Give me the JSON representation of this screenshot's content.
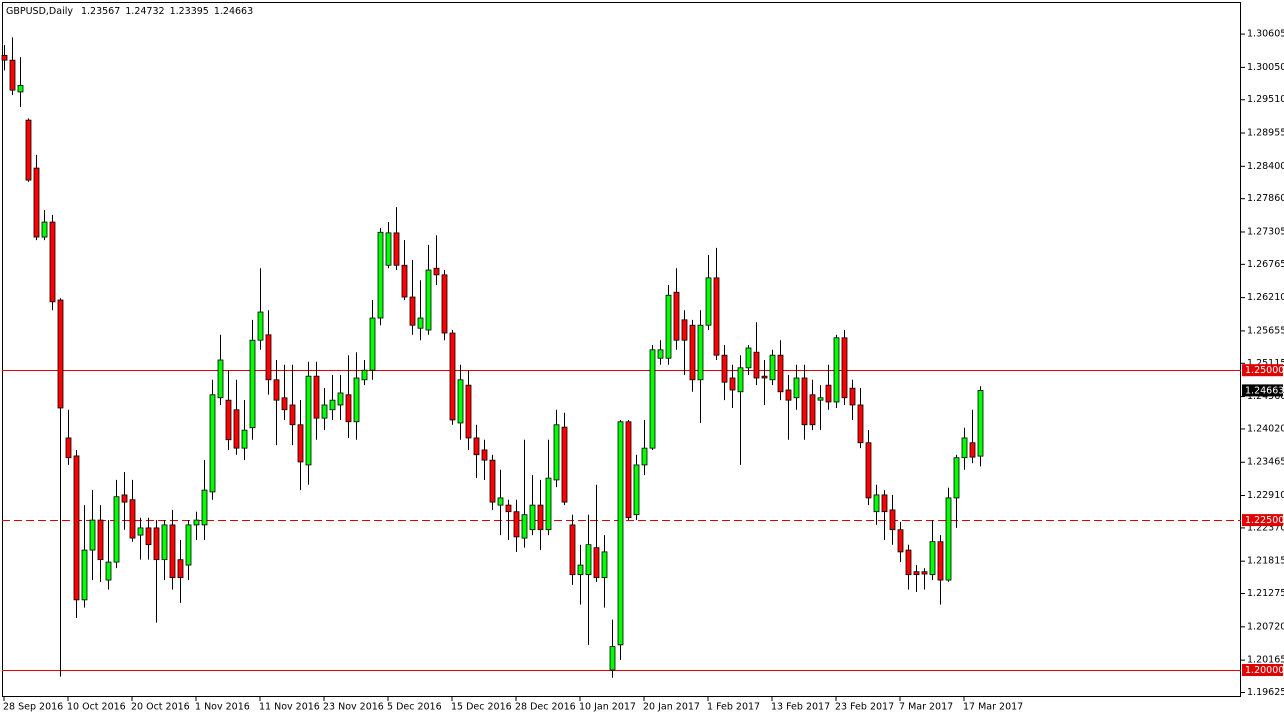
{
  "chart_data": {
    "type": "candlestick",
    "symbol": "GBPUSD,Daily",
    "categories": [
      "28 Sep 2016",
      null,
      null,
      null,
      null,
      null,
      null,
      null,
      "10 Oct 2016",
      null,
      null,
      null,
      null,
      null,
      null,
      null,
      "20 Oct 2016",
      null,
      null,
      null,
      null,
      null,
      null,
      null,
      "1 Nov 2016",
      null,
      null,
      null,
      null,
      null,
      null,
      null,
      "11 Nov 2016",
      null,
      null,
      null,
      null,
      null,
      null,
      null,
      "23 Nov 2016",
      null,
      null,
      null,
      null,
      null,
      null,
      null,
      "5 Dec 2016",
      null,
      null,
      null,
      null,
      null,
      null,
      null,
      "15 Dec 2016",
      null,
      null,
      null,
      null,
      null,
      null,
      null,
      "28 Dec 2016",
      null,
      null,
      null,
      null,
      null,
      null,
      null,
      "10 Jan 2017",
      null,
      null,
      null,
      null,
      null,
      null,
      null,
      "20 Jan 2017",
      null,
      null,
      null,
      null,
      null,
      null,
      null,
      "1 Feb 2017",
      null,
      null,
      null,
      null,
      null,
      null,
      null,
      "13 Feb 2017",
      null,
      null,
      null,
      null,
      null,
      null,
      null,
      "23 Feb 2017",
      null,
      null,
      null,
      null,
      null,
      null,
      null,
      "7 Mar 2017",
      null,
      null,
      null,
      null,
      null,
      null,
      null,
      "17 Mar 2017",
      null,
      null
    ],
    "open": [
      1.3025,
      1.3017,
      1.2964,
      1.2917,
      1.2837,
      1.2722,
      1.2747,
      1.2617,
      1.2387,
      1.2357,
      1.2117,
      1.22,
      1.225,
      1.215,
      1.218,
      1.2292,
      1.2284,
      1.2225,
      1.2237,
      1.2237,
      1.2184,
      1.2242,
      1.2184,
      1.2175,
      1.2242,
      1.2242,
      1.2297,
      1.2454,
      1.245,
      1.2434,
      1.237,
      1.2404,
      1.255,
      1.2559,
      1.2484,
      1.2454,
      1.2442,
      1.2409,
      1.2342,
      1.249,
      1.242,
      1.2434,
      1.2442,
      1.2459,
      1.2414,
      1.2484,
      1.25,
      1.2587,
      1.2675,
      1.2729,
      1.2675,
      1.2622,
      1.257,
      1.2567,
      1.267,
      1.2659,
      1.2562,
      1.2412,
      1.2475,
      1.2387,
      1.2367,
      1.235,
      1.2275,
      1.2275,
      1.2264,
      1.222,
      1.2234,
      1.2275,
      1.2234,
      1.2317,
      1.2405,
      1.2242,
      1.2159,
      1.2159,
      1.2204,
      1.2154,
      1.2,
      1.2042,
      1.2414,
      1.2259,
      1.2342,
      1.237,
      1.252,
      1.252,
      1.263,
      1.2584,
      1.2575,
      1.2484,
      1.2575,
      1.2654,
      1.2525,
      1.2487,
      1.2464,
      1.2504,
      1.253,
      1.249,
      1.2484,
      1.2525,
      1.2467,
      1.2454,
      1.2487,
      1.2459,
      1.245,
      1.2475,
      1.2447,
      1.2554,
      1.247,
      1.2442,
      1.2379,
      1.2264,
      1.2292,
      1.2267,
      1.2234,
      1.22,
      1.2164,
      1.2164,
      1.2159,
      1.2214,
      1.215,
      1.2287,
      1.2354,
      1.2379,
      1.23567
    ],
    "high": [
      1.3042,
      1.3055,
      1.3022,
      1.292,
      1.2859,
      1.2767,
      1.2759,
      1.262,
      1.2434,
      1.2367,
      1.2275,
      1.23,
      1.2275,
      1.225,
      1.2317,
      1.233,
      1.2317,
      1.2254,
      1.2254,
      1.225,
      1.225,
      1.2267,
      1.2217,
      1.225,
      1.2264,
      1.235,
      1.2484,
      1.2559,
      1.25,
      1.2484,
      1.245,
      1.2584,
      1.267,
      1.26,
      1.2517,
      1.2509,
      1.2509,
      1.245,
      1.2514,
      1.2514,
      1.247,
      1.2492,
      1.2492,
      1.2525,
      1.253,
      1.2517,
      1.2617,
      1.2737,
      1.2747,
      1.2772,
      1.2717,
      1.2684,
      1.265,
      1.2709,
      1.2725,
      1.2667,
      1.2567,
      1.2509,
      1.25,
      1.2409,
      1.2384,
      1.2359,
      1.2334,
      1.2284,
      1.2284,
      1.2384,
      1.2325,
      1.2317,
      1.2384,
      1.2434,
      1.2429,
      1.2259,
      1.2209,
      1.2259,
      1.2309,
      1.2225,
      1.2084,
      1.2417,
      1.2417,
      1.2359,
      1.2417,
      1.2542,
      1.255,
      1.2642,
      1.267,
      1.26,
      1.2584,
      1.26,
      1.2692,
      1.2704,
      1.2542,
      1.2509,
      1.2525,
      1.2542,
      1.258,
      1.2517,
      1.2534,
      1.255,
      1.2492,
      1.2509,
      1.2509,
      1.2484,
      1.2475,
      1.2509,
      1.2559,
      1.2567,
      1.2484,
      1.247,
      1.24,
      1.2309,
      1.23,
      1.2292,
      1.2247,
      1.2209,
      1.2175,
      1.217,
      1.225,
      1.2225,
      1.2304,
      1.2359,
      1.2404,
      1.2434,
      1.24732
    ],
    "low": [
      1.3,
      1.2959,
      1.2939,
      1.2814,
      1.2717,
      1.2717,
      1.26,
      1.1989,
      1.2342,
      1.2087,
      1.2104,
      1.215,
      1.2147,
      1.2134,
      1.217,
      1.2234,
      1.2214,
      1.2184,
      1.2184,
      1.2079,
      1.215,
      1.2134,
      1.2112,
      1.215,
      1.2217,
      1.2217,
      1.2284,
      1.2442,
      1.2367,
      1.2359,
      1.235,
      1.2384,
      1.2534,
      1.2459,
      1.2375,
      1.2417,
      1.2375,
      1.23,
      1.2309,
      1.2384,
      1.24,
      1.2417,
      1.2417,
      1.2387,
      1.2384,
      1.2475,
      1.2484,
      1.2575,
      1.267,
      1.2667,
      1.2617,
      1.2559,
      1.255,
      1.2559,
      1.2642,
      1.255,
      1.2409,
      1.2384,
      1.2367,
      1.232,
      1.2317,
      1.2267,
      1.2225,
      1.2217,
      1.2197,
      1.2204,
      1.2225,
      1.22,
      1.2225,
      1.2305,
      1.2275,
      1.2142,
      1.2109,
      1.2042,
      1.2147,
      1.2104,
      1.1987,
      1.2017,
      1.225,
      1.225,
      1.2325,
      1.2367,
      1.2509,
      1.2509,
      1.2534,
      1.2492,
      1.2464,
      1.2412,
      1.2567,
      1.2517,
      1.245,
      1.2437,
      1.2342,
      1.2492,
      1.2475,
      1.2442,
      1.2475,
      1.245,
      1.2384,
      1.2434,
      1.2384,
      1.24,
      1.24,
      1.2434,
      1.2437,
      1.2442,
      1.2417,
      1.237,
      1.2275,
      1.2242,
      1.2217,
      1.2209,
      1.218,
      1.2134,
      1.213,
      1.2134,
      1.215,
      1.2109,
      1.2147,
      1.2237,
      1.2334,
      1.2345,
      1.23395
    ],
    "close": [
      1.3017,
      1.2967,
      1.2975,
      1.2817,
      1.2722,
      1.2747,
      1.2614,
      1.2437,
      1.2354,
      1.2117,
      1.22,
      1.225,
      1.2184,
      1.218,
      1.2289,
      1.228,
      1.222,
      1.2237,
      1.2209,
      1.2184,
      1.2242,
      1.2154,
      1.2154,
      1.2242,
      1.225,
      1.23,
      1.2459,
      1.2517,
      1.2384,
      1.237,
      1.24,
      1.255,
      1.2597,
      1.2484,
      1.245,
      1.2434,
      1.2409,
      1.2347,
      1.249,
      1.242,
      1.2442,
      1.245,
      1.2462,
      1.2414,
      1.2487,
      1.25,
      1.2587,
      1.273,
      1.2729,
      1.2675,
      1.2622,
      1.2575,
      1.2587,
      1.2667,
      1.2659,
      1.2562,
      1.2417,
      1.2484,
      1.2387,
      1.2359,
      1.235,
      1.228,
      1.2287,
      1.2264,
      1.2222,
      1.2259,
      1.2275,
      1.2234,
      1.232,
      1.2409,
      1.228,
      1.2159,
      1.2175,
      1.2209,
      1.2154,
      1.2197,
      1.2039,
      1.2414,
      1.2254,
      1.2342,
      1.237,
      1.2534,
      1.2534,
      1.2625,
      1.255,
      1.255,
      1.2484,
      1.2575,
      1.2654,
      1.2525,
      1.248,
      1.2467,
      1.2504,
      1.2537,
      1.2487,
      1.2487,
      1.2525,
      1.2464,
      1.245,
      1.2487,
      1.2409,
      1.2409,
      1.2454,
      1.2447,
      1.2554,
      1.2454,
      1.2442,
      1.2379,
      1.2287,
      1.2292,
      1.2264,
      1.2234,
      1.2197,
      1.2159,
      1.2159,
      1.216,
      1.2214,
      1.215,
      1.2287,
      1.2354,
      1.2387,
      1.2355,
      1.24663
    ],
    "up_color": "#00ff00",
    "down_color": "#ff0000",
    "outline_color": "#000000",
    "ylim": [
      1.1955,
      1.3114
    ],
    "yticks": [
      1.30605,
      {
        "value": 1.3005,
        "label": "1.30050"
      },
      {
        "value": 1.2951,
        "label": "1.29510"
      },
      1.28955,
      {
        "value": 1.284,
        "label": "1.28400"
      },
      {
        "value": 1.2786,
        "label": "1.27860"
      },
      1.27305,
      1.26765,
      {
        "value": 1.2621,
        "label": "1.26210"
      },
      1.25655,
      1.25115,
      {
        "value": 1.2456,
        "label": "1.24560"
      },
      {
        "value": 1.2402,
        "label": "1.24020"
      },
      1.23465,
      {
        "value": 1.2291,
        "label": "1.22910"
      },
      {
        "value": 1.2237,
        "label": "1.22370"
      },
      1.21815,
      1.21275,
      {
        "value": 1.2072,
        "label": "1.20720"
      },
      1.20165,
      1.19625
    ],
    "level_color": "#e00000",
    "levels": [
      {
        "value": 1.25,
        "label": "1.25000",
        "dashed": false
      },
      {
        "value": 1.225,
        "label": "1.22500",
        "dashed": true
      },
      {
        "value": 1.2,
        "label": "1.20000",
        "dashed": false
      }
    ]
  }
}
